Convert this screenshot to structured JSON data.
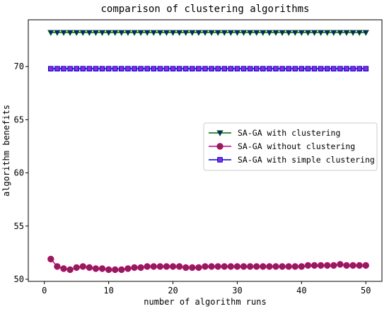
{
  "chart_data": {
    "type": "line",
    "title": "comparison of clustering algorithms",
    "xlabel": "number of algorithm runs",
    "ylabel": "algorithm benefits",
    "xlim": [
      -2.5,
      52.5
    ],
    "ylim": [
      49.8,
      74.4
    ],
    "xticks": [
      0,
      10,
      20,
      30,
      40,
      50
    ],
    "yticks": [
      50,
      55,
      60,
      65,
      70
    ],
    "grid": false,
    "legend_position": "center-right",
    "x": [
      1,
      2,
      3,
      4,
      5,
      6,
      7,
      8,
      9,
      10,
      11,
      12,
      13,
      14,
      15,
      16,
      17,
      18,
      19,
      20,
      21,
      22,
      23,
      24,
      25,
      26,
      27,
      28,
      29,
      30,
      31,
      32,
      33,
      34,
      35,
      36,
      37,
      38,
      39,
      40,
      41,
      42,
      43,
      44,
      45,
      46,
      47,
      48,
      49,
      50
    ],
    "series": [
      {
        "name": "SA-GA with clustering",
        "color": "#006400",
        "marker_color": "#0d1b8c",
        "marker": "triangle-down",
        "values": [
          73.2,
          73.2,
          73.2,
          73.2,
          73.2,
          73.2,
          73.2,
          73.2,
          73.2,
          73.2,
          73.2,
          73.2,
          73.2,
          73.2,
          73.2,
          73.2,
          73.2,
          73.2,
          73.2,
          73.2,
          73.2,
          73.2,
          73.2,
          73.2,
          73.2,
          73.2,
          73.2,
          73.2,
          73.2,
          73.2,
          73.2,
          73.2,
          73.2,
          73.2,
          73.2,
          73.2,
          73.2,
          73.2,
          73.2,
          73.2,
          73.2,
          73.2,
          73.2,
          73.2,
          73.2,
          73.2,
          73.2,
          73.2,
          73.2,
          73.2
        ]
      },
      {
        "name": "SA-GA without clustering",
        "color": "#c00080",
        "marker_color": "#8b2252",
        "marker": "circle",
        "values": [
          51.9,
          51.2,
          51.0,
          50.9,
          51.1,
          51.2,
          51.1,
          51.0,
          51.0,
          50.9,
          50.9,
          50.9,
          51.0,
          51.1,
          51.1,
          51.2,
          51.2,
          51.2,
          51.2,
          51.2,
          51.2,
          51.1,
          51.1,
          51.1,
          51.2,
          51.2,
          51.2,
          51.2,
          51.2,
          51.2,
          51.2,
          51.2,
          51.2,
          51.2,
          51.2,
          51.2,
          51.2,
          51.2,
          51.2,
          51.2,
          51.3,
          51.3,
          51.3,
          51.3,
          51.3,
          51.4,
          51.3,
          51.3,
          51.3,
          51.3
        ]
      },
      {
        "name": "SA-GA with simple clustering",
        "color": "#0000cd",
        "marker_color": "#8a2be2",
        "marker": "square",
        "values": [
          69.8,
          69.8,
          69.8,
          69.8,
          69.8,
          69.8,
          69.8,
          69.8,
          69.8,
          69.8,
          69.8,
          69.8,
          69.8,
          69.8,
          69.8,
          69.8,
          69.8,
          69.8,
          69.8,
          69.8,
          69.8,
          69.8,
          69.8,
          69.8,
          69.8,
          69.8,
          69.8,
          69.8,
          69.8,
          69.8,
          69.8,
          69.8,
          69.8,
          69.8,
          69.8,
          69.8,
          69.8,
          69.8,
          69.8,
          69.8,
          69.8,
          69.8,
          69.8,
          69.8,
          69.8,
          69.8,
          69.8,
          69.8,
          69.8,
          69.8
        ]
      }
    ]
  }
}
